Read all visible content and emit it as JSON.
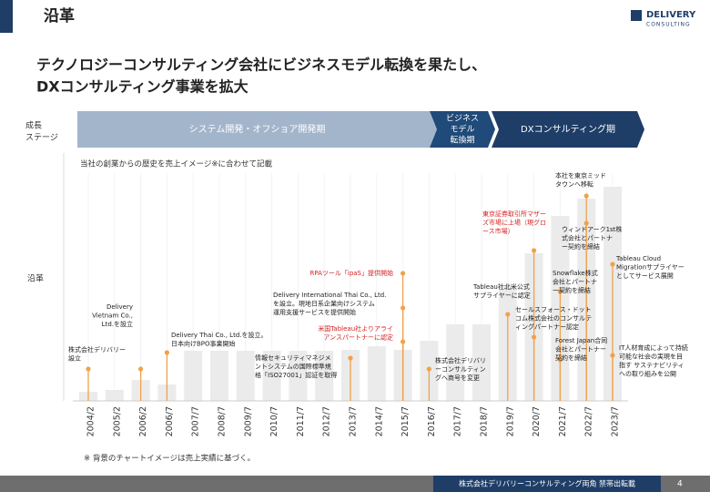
{
  "header": {
    "title": "沿革",
    "logo": [
      "DELIVERY",
      "CONSULTING"
    ]
  },
  "headline": [
    "テクノロジーコンサルティング会社にビジネスモデル転換を果たし、",
    "DXコンサルティング事業を拡大"
  ],
  "row_labels": {
    "stage": [
      "成長",
      "ステージ"
    ],
    "history": "沿革"
  },
  "stages": [
    {
      "lines": [
        "システム開発・オフショア開発期"
      ],
      "color": "#a3b5cb"
    },
    {
      "lines": [
        "ビジネス",
        "モデル",
        "転換期"
      ],
      "color": "#1f4a79"
    },
    {
      "lines": [
        "DXコンサルティング期"
      ],
      "color": "#1e3e68"
    }
  ],
  "chart_data": {
    "type": "bar",
    "subtitle": "当社の創業からの歴史を売上イメージ※に合わせて記載",
    "color": "#ebebeb",
    "annotation_color": "#f0a24a",
    "categories": [
      "2004/2",
      "2005/2",
      "2006/2",
      "2006/7",
      "2007/7",
      "2008/7",
      "2009/7",
      "2010/7",
      "2011/7",
      "2012/7",
      "2013/7",
      "2014/7",
      "2015/7",
      "2016/7",
      "2017/7",
      "2018/7",
      "2019/7",
      "2020/7",
      "2021/7",
      "2022/7",
      "2023/7"
    ],
    "values": [
      10,
      12,
      23,
      18,
      55,
      55,
      55,
      55,
      55,
      55,
      56,
      60,
      56,
      66,
      84,
      84,
      127,
      162,
      203,
      222,
      235
    ],
    "annotations": [
      {
        "category": 0,
        "lines": [
          "株式会社デリバリー",
          "設立"
        ],
        "highlight": false
      },
      {
        "category": 2,
        "lines": [
          "Delivery",
          "Vietnam Co.,",
          "Ltd.を設立"
        ],
        "highlight": false
      },
      {
        "category": 3,
        "lines": [
          "Delivery Thai Co., Ltd.を設立。",
          "日本向けBPO事業開始"
        ],
        "highlight": false
      },
      {
        "category": 10,
        "lines": [
          "情報セキュリティマネジメ",
          "ントシステムの国際標準規",
          "格「ISO27001」認証を取得"
        ],
        "highlight": false
      },
      {
        "category": 12,
        "lines": [
          "Delivery International Thai Co., Ltd.",
          "を設立。現地日系企業向けシステム",
          "運用支援サービスを提供開始"
        ],
        "highlight": false
      },
      {
        "category": 12,
        "lines": [
          "RPAツール「ipaS」提供開始"
        ],
        "highlight": true
      },
      {
        "category": 12,
        "lines": [
          "米国Tableau社よりアライ",
          "アンスパートナーに認定"
        ],
        "highlight": true
      },
      {
        "category": 13,
        "lines": [
          "株式会社デリバリ",
          "ーコンサルティン",
          "グへ商号を変更"
        ],
        "highlight": false
      },
      {
        "category": 16,
        "lines": [
          "Tableau社北米公式",
          "サプライヤーに認定"
        ],
        "highlight": false
      },
      {
        "category": 17,
        "lines": [
          "東京証券取引所マザー",
          "ズ市場に上場（現グロ",
          "ース市場）"
        ],
        "highlight": true
      },
      {
        "category": 17,
        "lines": [
          "セールスフォース・ドット",
          "コム株式会社のコンサルテ",
          "ィングパートナー認定"
        ],
        "highlight": false
      },
      {
        "category": 19,
        "lines": [
          "本社を東京ミッド",
          "タウンへ移転"
        ],
        "highlight": false
      },
      {
        "category": 19,
        "lines": [
          "ウィンドアーク1st株",
          "式会社とパートナ",
          "ー契約を締結"
        ],
        "highlight": false
      },
      {
        "category": 18,
        "lines": [
          "Snowflake株式",
          "会社とパートナ",
          "ー契約を締結"
        ],
        "highlight": false
      },
      {
        "category": 18,
        "lines": [
          "Forest Japan合同",
          "会社とパートナー",
          "契約を締結"
        ],
        "highlight": false
      },
      {
        "category": 20,
        "lines": [
          "Tableau Cloud",
          "Migrationサプライヤー",
          "としてサービス展開"
        ],
        "highlight": false
      },
      {
        "category": 20,
        "lines": [
          "IT人材育成によって持続",
          "可能な社会の実現を目",
          "指す サステナビリティ",
          "への取り組みを公開"
        ],
        "highlight": false
      }
    ],
    "footnote": "※ 背景のチャートイメージは売上実績に基づく。"
  },
  "footer": {
    "text": "株式会社デリバリーコンサルティング両角 禁帯出転載",
    "page": "4"
  }
}
